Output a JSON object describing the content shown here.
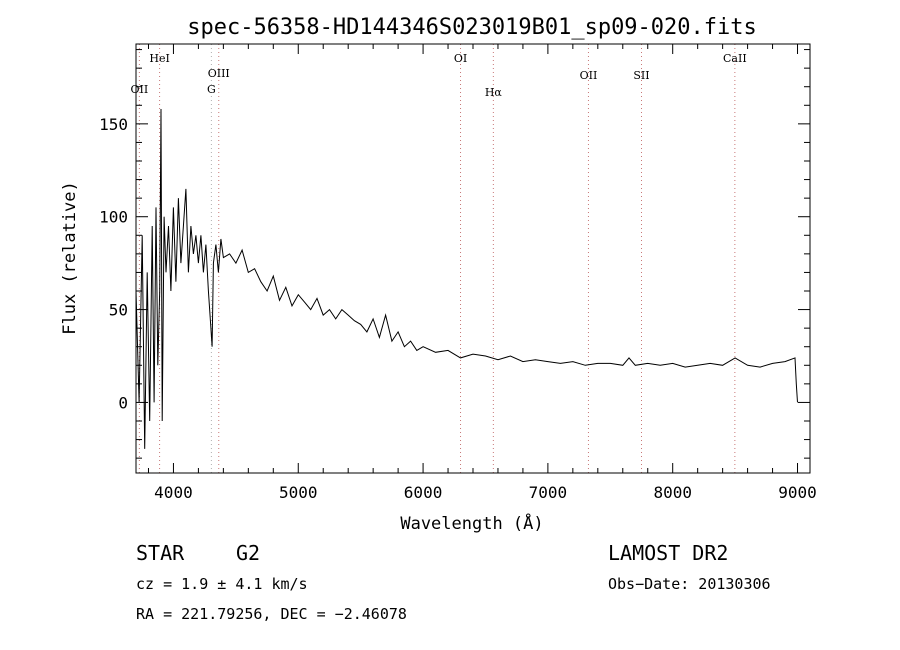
{
  "chart_data": {
    "type": "line",
    "title": "spec-56358-HD144346S023019B01_sp09-020.fits",
    "xlabel": "Wavelength (Å)",
    "ylabel": "Flux (relative)",
    "xlim": [
      3700,
      9100
    ],
    "ylim": [
      -38,
      193
    ],
    "xticks": [
      4000,
      5000,
      6000,
      7000,
      8000,
      9000
    ],
    "xtick_labels": [
      "4000",
      "5000",
      "6000",
      "7000",
      "8000",
      "9000"
    ],
    "yticks": [
      0,
      50,
      100,
      150
    ],
    "ytick_labels": [
      "0",
      "50",
      "100",
      "150"
    ],
    "grid": false,
    "series": [
      {
        "color": "#000000",
        "x": [
          3700,
          3725,
          3750,
          3770,
          3790,
          3810,
          3830,
          3845,
          3860,
          3875,
          3890,
          3900,
          3910,
          3925,
          3940,
          3960,
          3980,
          4000,
          4020,
          4040,
          4060,
          4080,
          4100,
          4120,
          4140,
          4160,
          4180,
          4200,
          4220,
          4240,
          4260,
          4280,
          4300,
          4310,
          4320,
          4340,
          4360,
          4380,
          4400,
          4450,
          4500,
          4550,
          4600,
          4650,
          4700,
          4750,
          4800,
          4850,
          4900,
          4950,
          5000,
          5050,
          5100,
          5150,
          5200,
          5250,
          5300,
          5350,
          5400,
          5450,
          5500,
          5550,
          5600,
          5650,
          5700,
          5750,
          5800,
          5850,
          5900,
          5950,
          6000,
          6100,
          6200,
          6300,
          6400,
          6500,
          6600,
          6700,
          6800,
          6900,
          7000,
          7100,
          7200,
          7300,
          7400,
          7500,
          7600,
          7650,
          7700,
          7800,
          7900,
          8000,
          8100,
          8200,
          8300,
          8400,
          8500,
          8600,
          8700,
          8800,
          8900,
          8980,
          8990,
          9000
        ],
        "y": [
          60,
          0,
          90,
          -25,
          70,
          -10,
          95,
          0,
          105,
          20,
          60,
          158,
          -10,
          100,
          70,
          95,
          60,
          105,
          65,
          110,
          75,
          95,
          115,
          70,
          95,
          80,
          90,
          75,
          90,
          70,
          85,
          60,
          40,
          30,
          75,
          85,
          70,
          88,
          78,
          80,
          75,
          82,
          70,
          72,
          65,
          60,
          68,
          55,
          62,
          52,
          58,
          54,
          50,
          56,
          47,
          50,
          45,
          50,
          47,
          44,
          42,
          38,
          45,
          35,
          47,
          33,
          38,
          30,
          33,
          28,
          30,
          27,
          28,
          24,
          26,
          25,
          23,
          25,
          22,
          23,
          22,
          21,
          22,
          20,
          21,
          21,
          20,
          24,
          20,
          21,
          20,
          21,
          19,
          20,
          21,
          20,
          24,
          20,
          19,
          21,
          22,
          24,
          10,
          0
        ]
      }
    ],
    "line_markers": [
      {
        "name": "OII",
        "x": 3727,
        "color": "#c87878"
      },
      {
        "name": "HeI",
        "x": 3889,
        "color": "#c87878"
      },
      {
        "name": "G",
        "x": 4304,
        "color": "#b0b0b0"
      },
      {
        "name": "OIII",
        "x": 4363,
        "color": "#c87878"
      },
      {
        "name": "OI",
        "x": 6300,
        "color": "#c87878"
      },
      {
        "name": "Hα",
        "x": 6563,
        "color": "#c87878"
      },
      {
        "name": "OII",
        "x": 7325,
        "color": "#c87878"
      },
      {
        "name": "SII",
        "x": 7750,
        "color": "#c87878"
      },
      {
        "name": "CaII",
        "x": 8498,
        "color": "#c87878"
      }
    ]
  },
  "info": {
    "class_label": "STAR",
    "subclass_label": "G2",
    "cz_text": "cz = 1.9 ± 4.1 km/s",
    "coords_text": "RA = 221.79256, DEC =  −2.46078",
    "survey_label": "LAMOST DR2",
    "obs_date_text": "Obs−Date: 20130306"
  }
}
